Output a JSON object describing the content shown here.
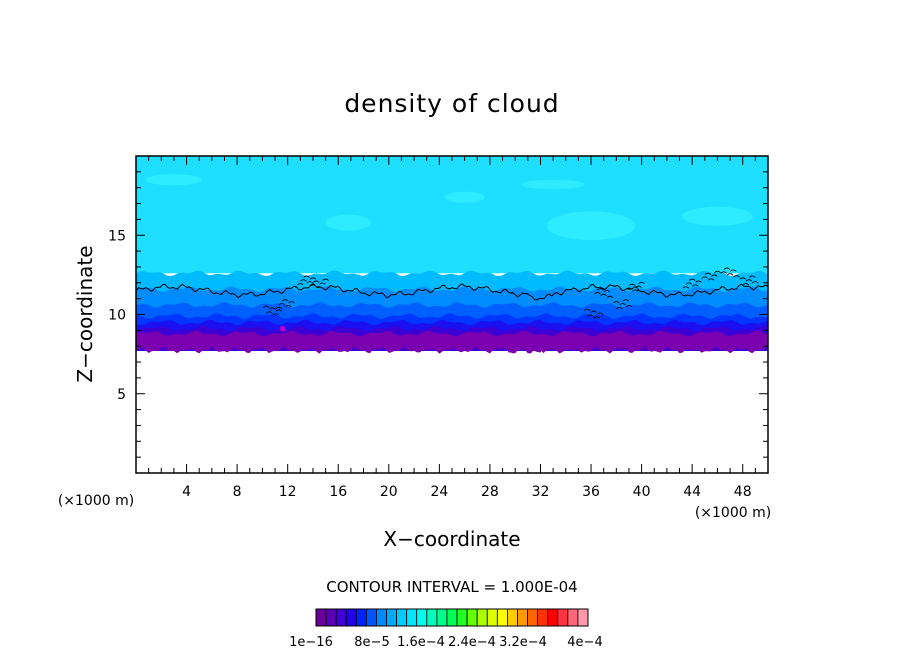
{
  "chart_data": {
    "type": "heatmap",
    "title": "density of cloud",
    "xlabel": "X−coordinate",
    "ylabel": "Z−coordinate",
    "x_unit_left": "(×1000 m)",
    "x_unit_right": "(×1000 m)",
    "xlim": [
      0,
      50
    ],
    "ylim": [
      0,
      20
    ],
    "x_ticks": [
      4,
      8,
      12,
      16,
      20,
      24,
      28,
      32,
      36,
      40,
      44,
      48
    ],
    "x_tick_labels": [
      "4",
      "8",
      "12",
      "16",
      "20",
      "24",
      "28",
      "32",
      "36",
      "40",
      "44",
      "48"
    ],
    "y_ticks": [
      5,
      10,
      15
    ],
    "y_tick_labels": [
      "5",
      "10",
      "15"
    ],
    "cloud_base_km": 8.0,
    "cloud_top_km": 20.0,
    "contour_line_height_km": 11.5,
    "contour_interval_text": "CONTOUR INTERVAL = 1.000E-04",
    "colorbar": {
      "colors": [
        "#6a0099",
        "#5c00b8",
        "#3f00d6",
        "#2200ee",
        "#0022ff",
        "#0055ff",
        "#0088ff",
        "#00aaff",
        "#00ccff",
        "#00e6ff",
        "#00ffee",
        "#00ffbb",
        "#00ff88",
        "#00ff55",
        "#22ff22",
        "#66ff00",
        "#aaff00",
        "#ddff00",
        "#ffff00",
        "#ffcc00",
        "#ff9900",
        "#ff6600",
        "#ff3300",
        "#ff0000",
        "#ff3344",
        "#ff6677",
        "#ff99aa"
      ],
      "labels": [
        "1e−16",
        "8e−5",
        "1.6e−4",
        "2.4e−4",
        "3.2e−4",
        "4e−4"
      ]
    },
    "grid": false,
    "legend": "bottom"
  },
  "colors": {
    "upper_cloud": "#1edfff",
    "light_patch": "#33f0ff",
    "band_1": "#00bbff",
    "band_2": "#008cff",
    "band_3": "#0060ff",
    "band_4": "#0036ff",
    "band_5": "#1a10f0",
    "band_6": "#3d00d4",
    "band_base": "#7a00b0"
  }
}
